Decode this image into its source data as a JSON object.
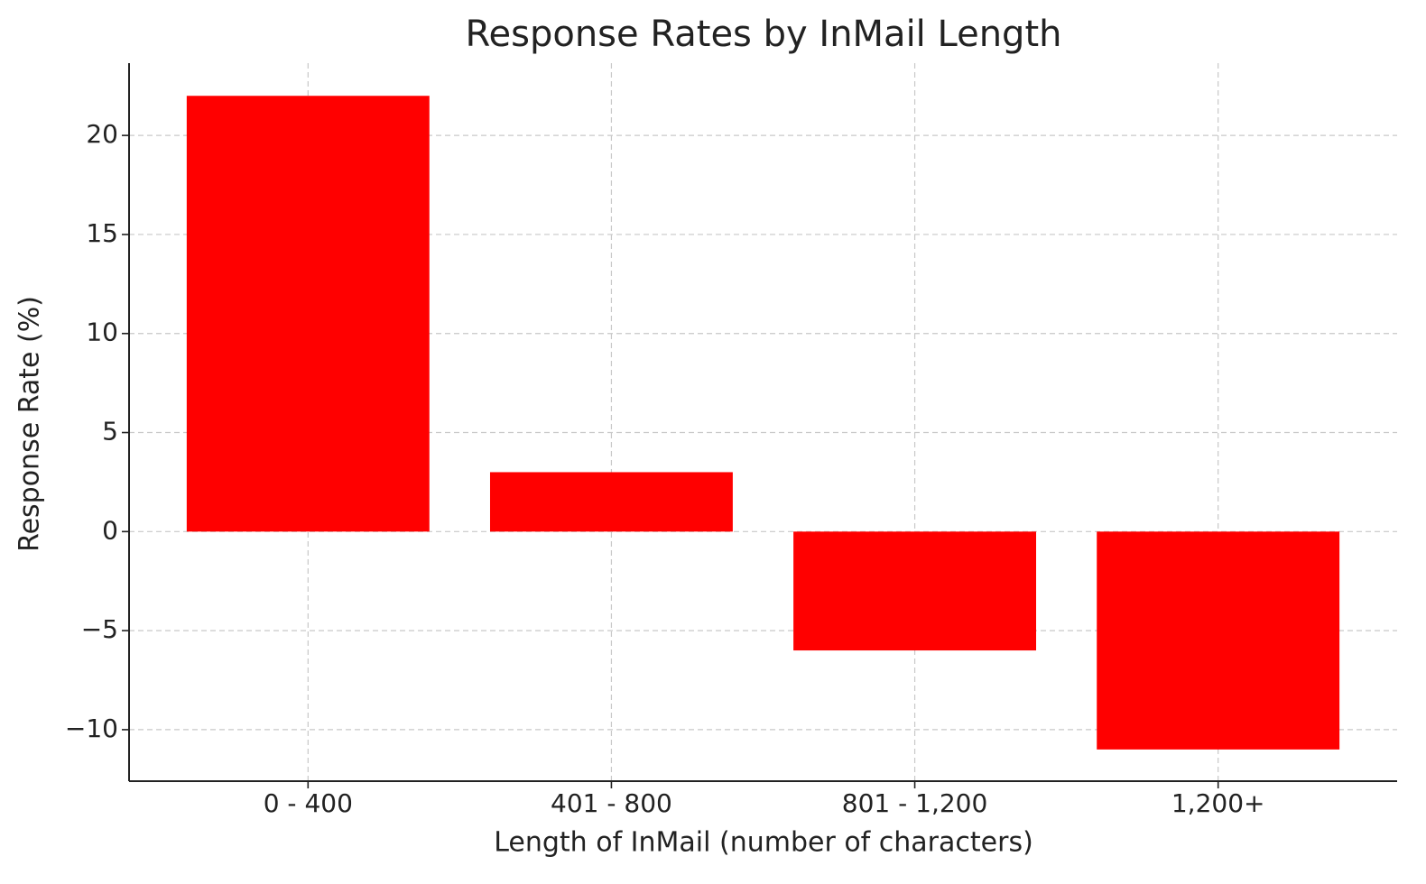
{
  "chart_data": {
    "type": "bar",
    "title": "Response Rates by InMail Length",
    "x_label": "Length of InMail (number of characters)",
    "y_label": "Response Rate (%)",
    "categories": [
      "0 - 400",
      "401 - 800",
      "801 - 1,200",
      "1,200+"
    ],
    "values": [
      22,
      3,
      -6,
      -11
    ],
    "color": "#ff0000",
    "ylim": [
      -12.6,
      23.65
    ],
    "yticks": [
      {
        "value": -10,
        "label": "−10"
      },
      {
        "value": -5,
        "label": "−5"
      },
      0,
      5,
      10,
      15,
      20
    ],
    "grid": true
  }
}
